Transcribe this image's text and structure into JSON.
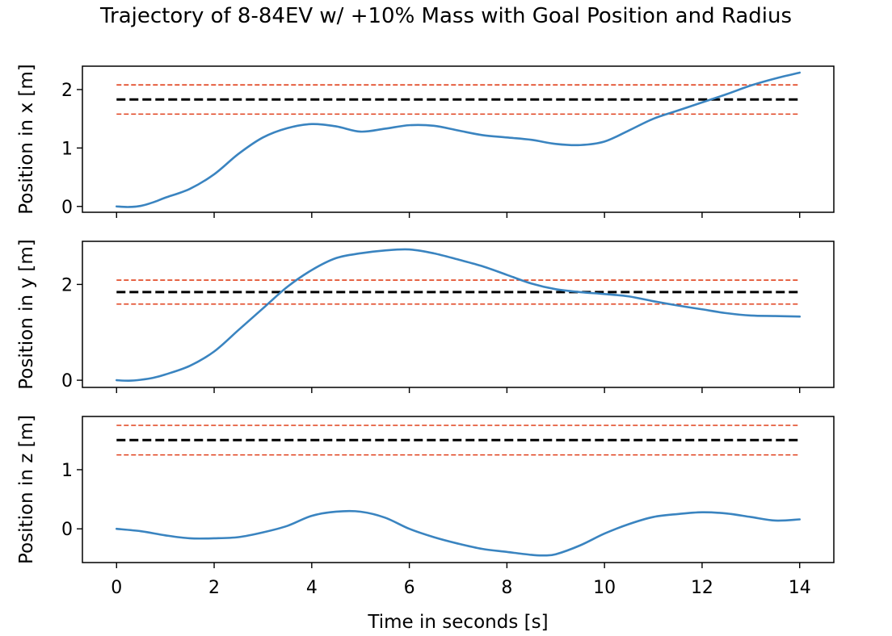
{
  "chart_data": {
    "type": "line",
    "title": "Trajectory of 8-84EV w/ +10% Mass with Goal Position and Radius",
    "xlabel": "Time in seconds [s]",
    "xlim": [
      -0.7,
      14.7
    ],
    "xticks": [
      0,
      2,
      4,
      6,
      8,
      10,
      12,
      14
    ],
    "grid": false,
    "colors": {
      "trajectory": "#3a84c0",
      "goal": "#000000",
      "radius": "#e0401c"
    },
    "subplots": [
      {
        "ylabel": "Position in x [m]",
        "ylim": [
          -0.1,
          2.4
        ],
        "yticks": [
          0,
          1,
          2
        ],
        "goal": 1.83,
        "radius_upper": 2.08,
        "radius_lower": 1.58,
        "series": {
          "x": [
            0,
            0.25,
            0.5,
            0.75,
            1,
            1.5,
            2,
            2.5,
            3,
            3.5,
            4,
            4.5,
            5,
            5.5,
            6,
            6.5,
            7,
            7.5,
            8,
            8.5,
            9,
            9.5,
            10,
            10.5,
            11,
            11.5,
            12,
            12.5,
            13,
            13.5,
            14
          ],
          "y": [
            0.0,
            -0.01,
            0.01,
            0.07,
            0.15,
            0.3,
            0.55,
            0.9,
            1.18,
            1.34,
            1.41,
            1.37,
            1.28,
            1.33,
            1.39,
            1.38,
            1.3,
            1.22,
            1.18,
            1.14,
            1.07,
            1.05,
            1.11,
            1.3,
            1.5,
            1.64,
            1.78,
            1.92,
            2.07,
            2.19,
            2.29
          ]
        }
      },
      {
        "ylabel": "Position in y [m]",
        "ylim": [
          -0.15,
          2.9
        ],
        "yticks": [
          0,
          2
        ],
        "goal": 1.84,
        "radius_upper": 2.09,
        "radius_lower": 1.59,
        "series": {
          "x": [
            0,
            0.25,
            0.5,
            0.75,
            1,
            1.5,
            2,
            2.5,
            3,
            3.5,
            4,
            4.5,
            5,
            5.5,
            6,
            6.5,
            7,
            7.5,
            8,
            8.5,
            9,
            9.5,
            10,
            10.5,
            11,
            11.5,
            12,
            12.5,
            13,
            13.5,
            14
          ],
          "y": [
            0.0,
            -0.01,
            0.01,
            0.05,
            0.12,
            0.3,
            0.6,
            1.05,
            1.5,
            1.95,
            2.3,
            2.55,
            2.65,
            2.71,
            2.73,
            2.65,
            2.52,
            2.38,
            2.2,
            2.02,
            1.9,
            1.84,
            1.8,
            1.75,
            1.65,
            1.56,
            1.48,
            1.4,
            1.35,
            1.34,
            1.33
          ]
        }
      },
      {
        "ylabel": "Position in z [m]",
        "ylim": [
          -0.57,
          1.9
        ],
        "yticks": [
          0,
          1
        ],
        "goal": 1.5,
        "radius_upper": 1.75,
        "radius_lower": 1.25,
        "series": {
          "x": [
            0,
            0.5,
            1,
            1.5,
            2,
            2.5,
            3,
            3.5,
            4,
            4.5,
            5,
            5.5,
            6,
            6.5,
            7,
            7.5,
            8,
            8.5,
            8.75,
            9,
            9.5,
            10,
            10.5,
            11,
            11.5,
            12,
            12.5,
            13,
            13.5,
            14
          ],
          "y": [
            0.0,
            -0.04,
            -0.11,
            -0.16,
            -0.16,
            -0.14,
            -0.06,
            0.05,
            0.22,
            0.29,
            0.29,
            0.19,
            0.0,
            -0.14,
            -0.25,
            -0.34,
            -0.39,
            -0.44,
            -0.45,
            -0.43,
            -0.28,
            -0.08,
            0.08,
            0.2,
            0.25,
            0.28,
            0.26,
            0.2,
            0.14,
            0.16
          ]
        }
      }
    ]
  }
}
